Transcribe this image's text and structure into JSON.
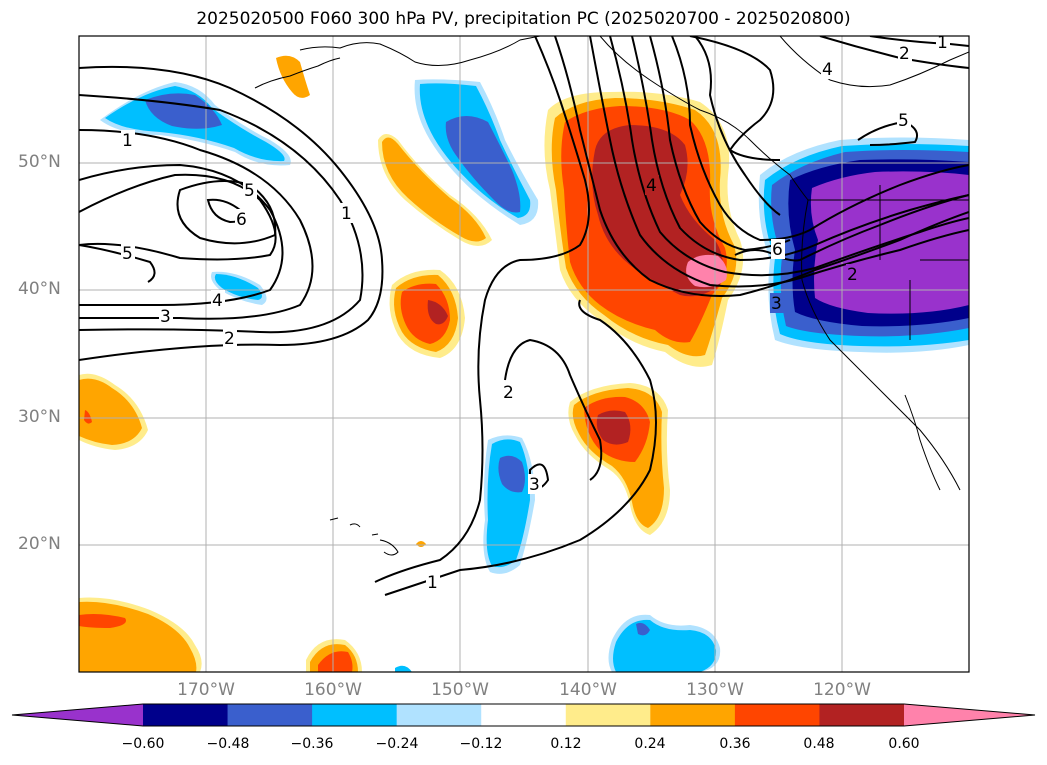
{
  "title": "2025020500 F060 300 hPa PV, precipitation PC (2025020700 - 2025020800)",
  "latitude_labels": [
    "50°N",
    "40°N",
    "30°N",
    "20°N"
  ],
  "longitude_labels": [
    "170°W",
    "160°W",
    "150°W",
    "140°W",
    "130°W",
    "120°W"
  ],
  "colorbar": {
    "colors": [
      "#9932cc",
      "#00008b",
      "#3a5fcd",
      "#00bfff",
      "#b0e2ff",
      "#ffffff",
      "#ffec8b",
      "#ffa500",
      "#ff4500",
      "#b22222",
      "#ff82ab"
    ],
    "ticks": [
      "−0.60",
      "−0.48",
      "−0.36",
      "−0.24",
      "−0.12",
      "0.12",
      "0.24",
      "0.36",
      "0.48",
      "0.60"
    ],
    "extend": "both"
  },
  "contour_labels": [
    "1",
    "2",
    "3",
    "4",
    "5",
    "6"
  ]
}
